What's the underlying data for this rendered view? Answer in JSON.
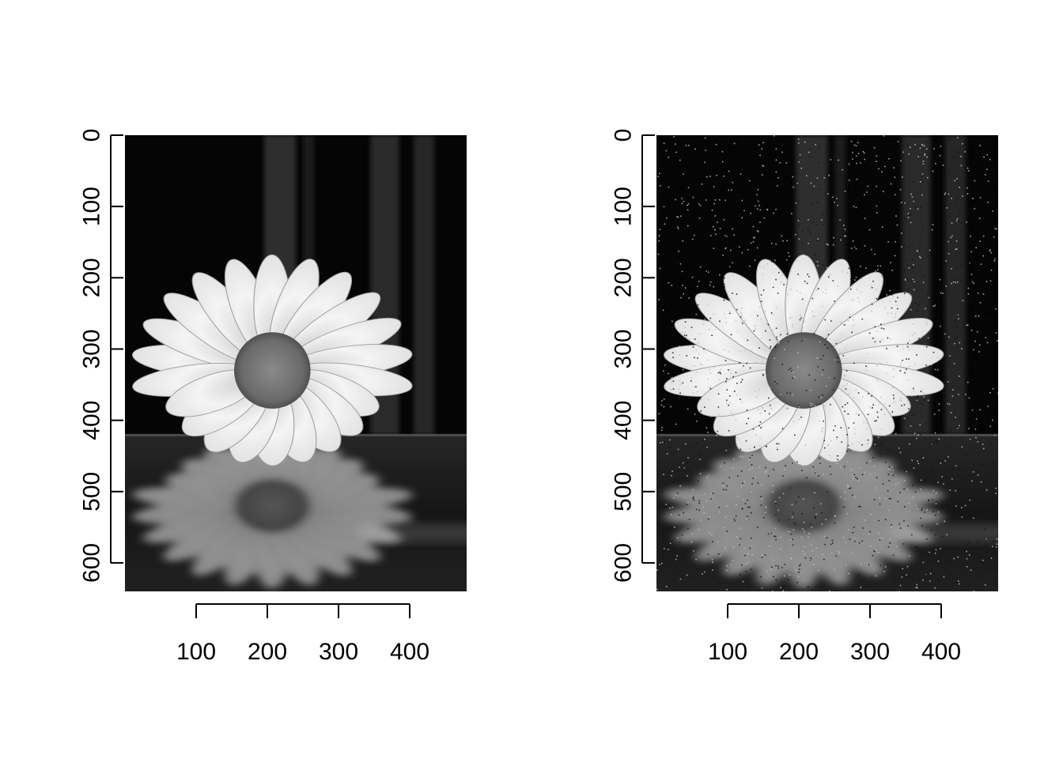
{
  "chart_data": [
    {
      "type": "image",
      "title": "",
      "xlabel": "",
      "ylabel": "",
      "content": "grayscale photo of a daisy with its reflection on water",
      "noise": "none",
      "xlim": [
        0,
        480
      ],
      "ylim": [
        640,
        0
      ],
      "x_ticks": [
        100,
        200,
        300,
        400
      ],
      "y_ticks": [
        0,
        100,
        200,
        300,
        400,
        500,
        600
      ],
      "grid": false,
      "legend": "none"
    },
    {
      "type": "image",
      "title": "",
      "xlabel": "",
      "ylabel": "",
      "content": "same daisy photo with salt-and-pepper noise added",
      "noise": "salt-and-pepper",
      "xlim": [
        0,
        480
      ],
      "ylim": [
        640,
        0
      ],
      "x_ticks": [
        100,
        200,
        300,
        400
      ],
      "y_ticks": [
        0,
        100,
        200,
        300,
        400,
        500,
        600
      ],
      "grid": false,
      "legend": "none"
    }
  ]
}
